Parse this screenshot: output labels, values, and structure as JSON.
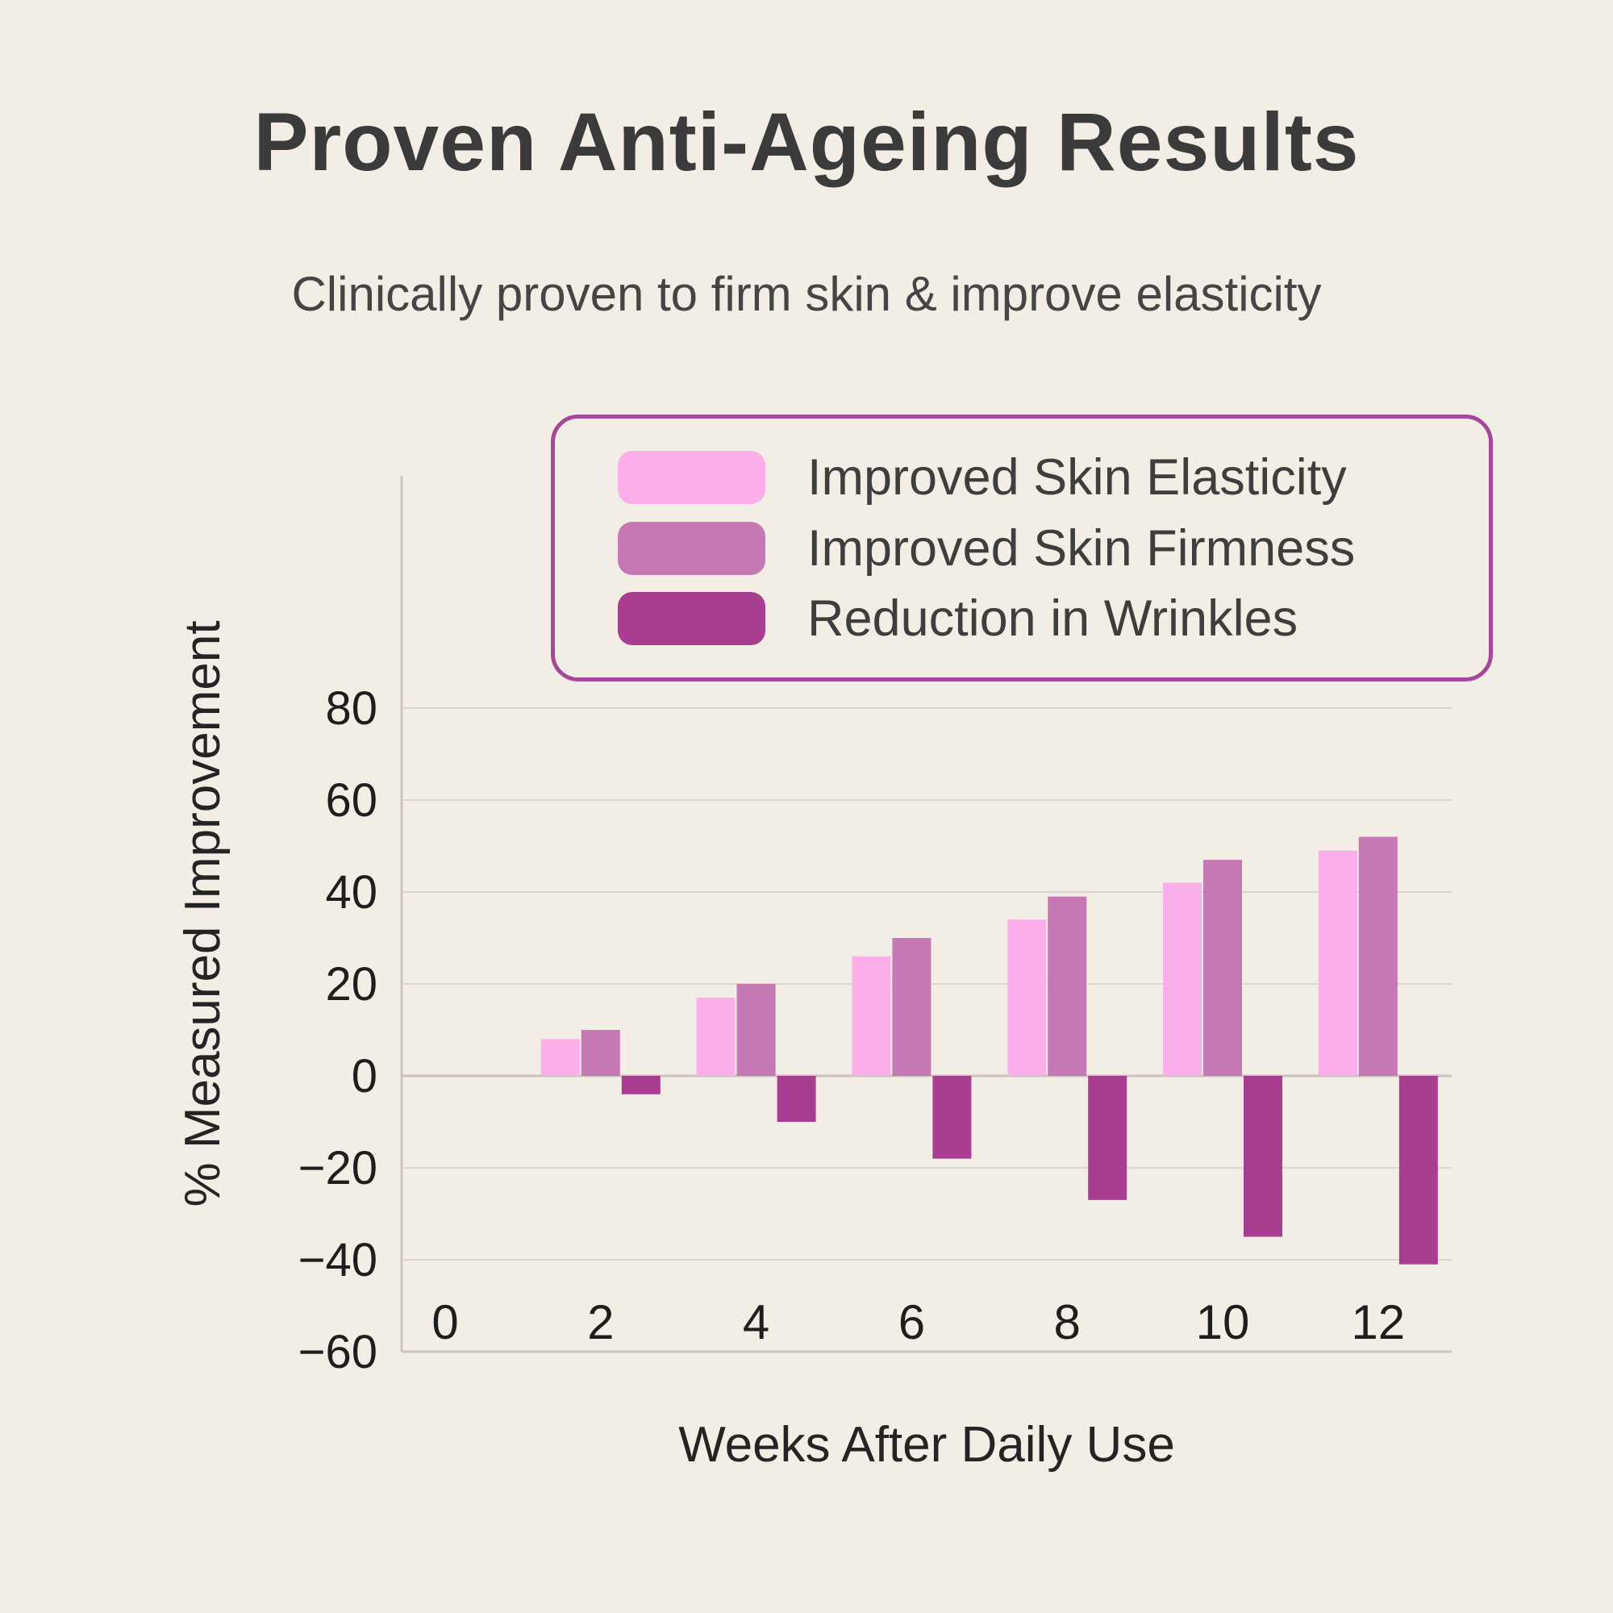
{
  "page": {
    "background_color": "#F2EDE5"
  },
  "header": {
    "title": "Proven Anti-Ageing Results",
    "subtitle": "Clinically proven to firm skin & improve elasticity"
  },
  "legend": {
    "border_color": "#A4489A",
    "position": "upper right"
  },
  "chart_data": {
    "type": "bar",
    "title": "",
    "xlabel": "Weeks After Daily Use",
    "ylabel": "% Measured Improvement",
    "categories": [
      2,
      4,
      6,
      8,
      10,
      12
    ],
    "series": [
      {
        "name": "Improved Skin Elasticity",
        "color": "#FBAEE9",
        "values": [
          8,
          17,
          26,
          34,
          42,
          49
        ]
      },
      {
        "name": "Improved Skin Firmness",
        "color": "#C678B4",
        "values": [
          10,
          20,
          30,
          39,
          47,
          52
        ]
      },
      {
        "name": "Reduction in Wrinkles",
        "color": "#A93D90",
        "values": [
          -4,
          -10,
          -18,
          -27,
          -35,
          -41
        ]
      }
    ],
    "x_ticks": [
      0,
      2,
      4,
      6,
      8,
      10,
      12
    ],
    "y_ticks": [
      -60,
      -40,
      -20,
      0,
      20,
      40,
      60,
      80
    ],
    "ylim": [
      -60,
      130
    ],
    "xlim": [
      -0.56,
      12.9
    ],
    "grid": true,
    "gridline_color": "#DCD6CF",
    "zero_line_color": "#C9C3BB",
    "axis_line_color": "#CBC5BE",
    "tick_text_color": "#1E1E1E"
  }
}
